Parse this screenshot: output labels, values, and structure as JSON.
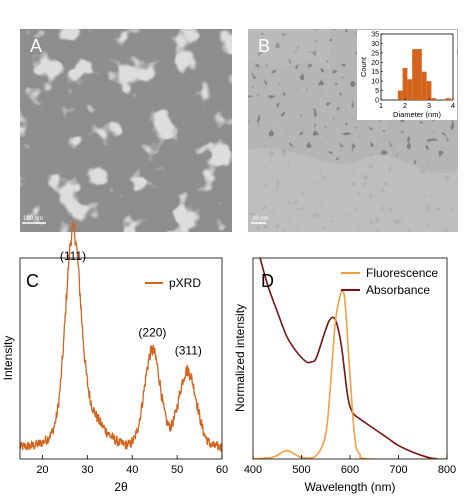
{
  "panels": {
    "A": {
      "label": "A",
      "scale_bar": "100 nm"
    },
    "B": {
      "label": "B",
      "scale_bar": "20 nm"
    },
    "C": {
      "label": "C"
    },
    "D": {
      "label": "D"
    }
  },
  "chart_data": [
    {
      "panel": "B-inset",
      "type": "bar",
      "xlabel": "Diameter (nm)",
      "ylabel": "Count",
      "xlim": [
        1,
        4
      ],
      "ylim": [
        0,
        35
      ],
      "xticks": [
        1,
        2,
        3,
        4
      ],
      "yticks": [
        0,
        5,
        10,
        15,
        20,
        25,
        30,
        35
      ],
      "bin_width": 0.2,
      "bins": [
        {
          "x": 1.8,
          "value": 5
        },
        {
          "x": 2.0,
          "value": 17
        },
        {
          "x": 2.2,
          "value": 11
        },
        {
          "x": 2.4,
          "value": 27
        },
        {
          "x": 2.6,
          "value": 27
        },
        {
          "x": 2.8,
          "value": 15
        },
        {
          "x": 3.0,
          "value": 10
        },
        {
          "x": 3.2,
          "value": 1
        },
        {
          "x": 3.8,
          "value": 1
        }
      ],
      "color": "#d4641c"
    },
    {
      "panel": "C",
      "type": "line",
      "xlabel": "2θ",
      "ylabel": "Intensity",
      "xlim": [
        15,
        60
      ],
      "xticks": [
        20,
        30,
        40,
        50,
        60
      ],
      "ylim": [
        0,
        1
      ],
      "show_yticks": false,
      "legend": "top-right",
      "series": [
        {
          "name": "pXRD",
          "color": "#d4641c",
          "baseline": 0.06,
          "peaks": [
            {
              "center": 26.8,
              "height": 0.88,
              "width": 1.6
            },
            {
              "center": 28.5,
              "height": 0.22,
              "width": 4.0
            },
            {
              "center": 44.5,
              "height": 0.48,
              "width": 1.8
            },
            {
              "center": 52.3,
              "height": 0.38,
              "width": 2.0
            }
          ],
          "noise": 0.025
        }
      ],
      "annotations": [
        {
          "text": "(111)",
          "x": 26.8,
          "y": 0.99
        },
        {
          "text": "(220)",
          "x": 44.5,
          "y": 0.61
        },
        {
          "text": "(311)",
          "x": 52.5,
          "y": 0.52
        }
      ]
    },
    {
      "panel": "D",
      "type": "line",
      "xlabel": "Wavelength (nm)",
      "ylabel": "Normalized intensity",
      "xlim": [
        400,
        800
      ],
      "xticks": [
        400,
        500,
        600,
        700,
        800
      ],
      "ylim": [
        0,
        1.2
      ],
      "show_yticks": false,
      "legend": "top-right",
      "series": [
        {
          "name": "Fluorescence",
          "color": "#f5a03c",
          "points": [
            [
              400,
              0.0
            ],
            [
              440,
              0.01
            ],
            [
              460,
              0.04
            ],
            [
              470,
              0.05
            ],
            [
              480,
              0.04
            ],
            [
              500,
              0.01
            ],
            [
              530,
              0.02
            ],
            [
              550,
              0.15
            ],
            [
              560,
              0.45
            ],
            [
              570,
              0.82
            ],
            [
              580,
              0.98
            ],
            [
              585,
              1.0
            ],
            [
              590,
              0.93
            ],
            [
              600,
              0.5
            ],
            [
              610,
              0.12
            ],
            [
              620,
              0.03
            ],
            [
              640,
              0.0
            ],
            [
              800,
              0.0
            ]
          ]
        },
        {
          "name": "Absorbance",
          "color": "#7a1212",
          "points": [
            [
              410,
              1.25
            ],
            [
              430,
              1.04
            ],
            [
              450,
              0.88
            ],
            [
              470,
              0.73
            ],
            [
              490,
              0.64
            ],
            [
              510,
              0.58
            ],
            [
              520,
              0.58
            ],
            [
              530,
              0.6
            ],
            [
              545,
              0.73
            ],
            [
              558,
              0.83
            ],
            [
              570,
              0.83
            ],
            [
              582,
              0.68
            ],
            [
              595,
              0.38
            ],
            [
              605,
              0.28
            ],
            [
              620,
              0.24
            ],
            [
              650,
              0.18
            ],
            [
              680,
              0.12
            ],
            [
              700,
              0.08
            ],
            [
              730,
              0.04
            ],
            [
              760,
              0.01
            ],
            [
              780,
              0.0
            ]
          ]
        }
      ]
    }
  ]
}
